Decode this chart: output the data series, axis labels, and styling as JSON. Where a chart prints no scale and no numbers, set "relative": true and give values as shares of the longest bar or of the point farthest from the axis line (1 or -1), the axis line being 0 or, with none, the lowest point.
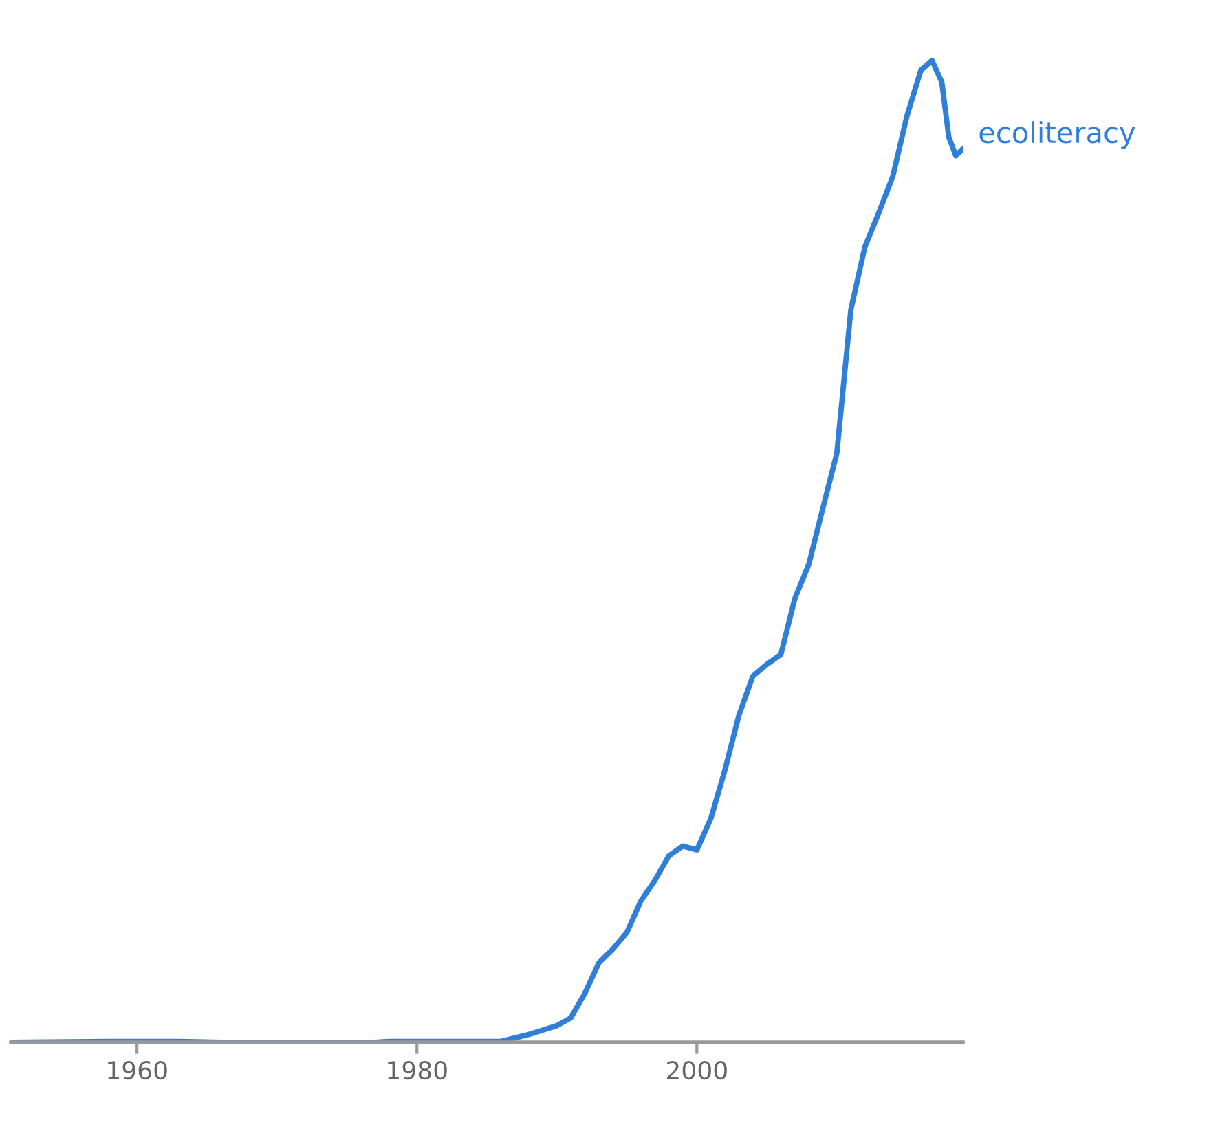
{
  "chart_data": {
    "type": "line",
    "relative": true,
    "xlim": [
      1951,
      2019
    ],
    "xticks": [
      1960,
      1980,
      2000
    ],
    "legend": false,
    "grid": false,
    "marker": "none",
    "line_style": "solid",
    "series": [
      {
        "name": "ecoliteracy",
        "color": "#2f7ed8",
        "x": [
          1951,
          1958,
          1963,
          1966,
          1977,
          1978,
          1986,
          1988,
          1990,
          1991,
          1992,
          1993,
          1994,
          1995,
          1996,
          1997,
          1998,
          1999,
          2000,
          2001,
          2002,
          2003,
          2004,
          2005,
          2006,
          2007,
          2008,
          2009,
          2010,
          2011,
          2012,
          2013,
          2014,
          2015,
          2016,
          2016.8,
          2017.5,
          2018,
          2018.5,
          2019
        ],
        "values": [
          0,
          0.001,
          0.001,
          0,
          0,
          0.001,
          0.001,
          0.008,
          0.017,
          0.025,
          0.05,
          0.081,
          0.095,
          0.112,
          0.144,
          0.165,
          0.19,
          0.2,
          0.196,
          0.228,
          0.277,
          0.333,
          0.373,
          0.385,
          0.395,
          0.452,
          0.487,
          0.544,
          0.6,
          0.746,
          0.81,
          0.845,
          0.882,
          0.943,
          0.99,
          1,
          0.978,
          0.922,
          0.903,
          0.91
        ]
      }
    ]
  }
}
